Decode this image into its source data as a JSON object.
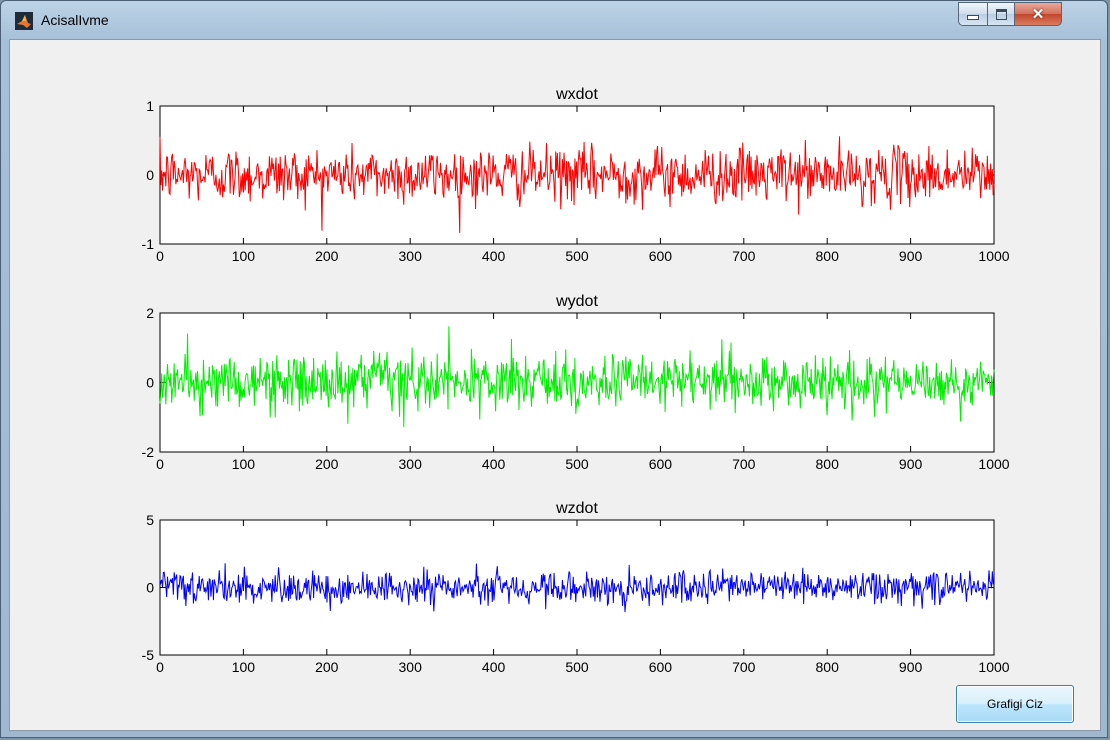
{
  "window": {
    "title": "AcisalIvme"
  },
  "button": {
    "label": "Grafigi Ciz"
  },
  "colors": {
    "wxdot": "#ff0000",
    "wydot": "#00ee00",
    "wzdot": "#0000ff"
  },
  "chart_data": [
    {
      "type": "line",
      "title": "wxdot",
      "xlim": [
        0,
        1000
      ],
      "ylim": [
        -1,
        1
      ],
      "xticks": [
        "0",
        "100",
        "200",
        "300",
        "400",
        "500",
        "600",
        "700",
        "800",
        "900",
        "1000"
      ],
      "yticks": [
        "-1",
        "0",
        "1"
      ],
      "n_points": 1000,
      "std": 0.2,
      "color": "#ff0000",
      "grid": false
    },
    {
      "type": "line",
      "title": "wydot",
      "xlim": [
        0,
        1000
      ],
      "ylim": [
        -2,
        2
      ],
      "xticks": [
        "0",
        "100",
        "200",
        "300",
        "400",
        "500",
        "600",
        "700",
        "800",
        "900",
        "1000"
      ],
      "yticks": [
        "-2",
        "0",
        "2"
      ],
      "n_points": 1000,
      "std": 0.4,
      "color": "#00ee00",
      "grid": false
    },
    {
      "type": "line",
      "title": "wzdot",
      "xlim": [
        0,
        1000
      ],
      "ylim": [
        -5,
        5
      ],
      "xticks": [
        "0",
        "100",
        "200",
        "300",
        "400",
        "500",
        "600",
        "700",
        "800",
        "900",
        "1000"
      ],
      "yticks": [
        "-5",
        "0",
        "5"
      ],
      "n_points": 1000,
      "std": 0.6,
      "color": "#0000ff",
      "grid": false
    }
  ]
}
